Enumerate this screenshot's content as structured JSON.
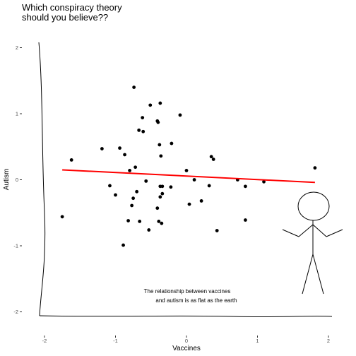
{
  "chart_data": {
    "type": "scatter",
    "title_lines": [
      "Which conspiracy theory",
      "should you believe??"
    ],
    "xlabel": "Vaccines",
    "ylabel": "Autism",
    "xlim": [
      -2.0,
      2.0
    ],
    "ylim": [
      -2.0,
      2.0
    ],
    "x_ticks": [
      -2,
      -1,
      0,
      1,
      2
    ],
    "y_ticks": [
      -2,
      -1,
      0,
      1,
      2
    ],
    "grid": false,
    "points": [
      {
        "x": -0.74,
        "y": 1.4
      },
      {
        "x": -0.51,
        "y": 1.13
      },
      {
        "x": -0.37,
        "y": 1.16
      },
      {
        "x": -0.62,
        "y": 0.94
      },
      {
        "x": -0.41,
        "y": 0.89
      },
      {
        "x": -0.4,
        "y": 0.87
      },
      {
        "x": -0.09,
        "y": 0.98
      },
      {
        "x": -0.67,
        "y": 0.75
      },
      {
        "x": -0.61,
        "y": 0.73
      },
      {
        "x": -1.19,
        "y": 0.47
      },
      {
        "x": -0.94,
        "y": 0.48
      },
      {
        "x": -0.87,
        "y": 0.38
      },
      {
        "x": -0.38,
        "y": 0.53
      },
      {
        "x": -0.21,
        "y": 0.55
      },
      {
        "x": -0.36,
        "y": 0.36
      },
      {
        "x": 0.35,
        "y": 0.35
      },
      {
        "x": 0.38,
        "y": 0.31
      },
      {
        "x": -1.62,
        "y": 0.3
      },
      {
        "x": -0.72,
        "y": 0.19
      },
      {
        "x": -0.8,
        "y": 0.14
      },
      {
        "x": 0.0,
        "y": 0.14
      },
      {
        "x": 1.81,
        "y": 0.18
      },
      {
        "x": -0.57,
        "y": -0.02
      },
      {
        "x": 0.11,
        "y": 0.0
      },
      {
        "x": 0.72,
        "y": 0.0
      },
      {
        "x": 1.09,
        "y": -0.03
      },
      {
        "x": -1.08,
        "y": -0.09
      },
      {
        "x": -0.37,
        "y": -0.1
      },
      {
        "x": -0.34,
        "y": -0.1
      },
      {
        "x": -0.22,
        "y": -0.11
      },
      {
        "x": 0.32,
        "y": -0.09
      },
      {
        "x": 0.83,
        "y": -0.1
      },
      {
        "x": -0.7,
        "y": -0.18
      },
      {
        "x": -0.34,
        "y": -0.21
      },
      {
        "x": -1.0,
        "y": -0.23
      },
      {
        "x": -0.37,
        "y": -0.26
      },
      {
        "x": -0.75,
        "y": -0.28
      },
      {
        "x": 0.21,
        "y": -0.32
      },
      {
        "x": -1.75,
        "y": -0.56
      },
      {
        "x": 0.04,
        "y": -0.37
      },
      {
        "x": -0.77,
        "y": -0.39
      },
      {
        "x": -0.41,
        "y": -0.43
      },
      {
        "x": -0.82,
        "y": -0.62
      },
      {
        "x": -0.66,
        "y": -0.63
      },
      {
        "x": -0.39,
        "y": -0.63
      },
      {
        "x": -0.35,
        "y": -0.66
      },
      {
        "x": -0.53,
        "y": -0.76
      },
      {
        "x": 0.43,
        "y": -0.77
      },
      {
        "x": 0.83,
        "y": -0.61
      },
      {
        "x": -0.89,
        "y": -0.99
      }
    ],
    "trend_line": {
      "x": [
        -1.75,
        1.81
      ],
      "y": [
        0.15,
        -0.04
      ],
      "color": "#ff0000"
    },
    "annotation_lines": [
      "The relationship between vaccines",
      "and autism is as flat as the earth"
    ],
    "point_color": "#000000"
  }
}
